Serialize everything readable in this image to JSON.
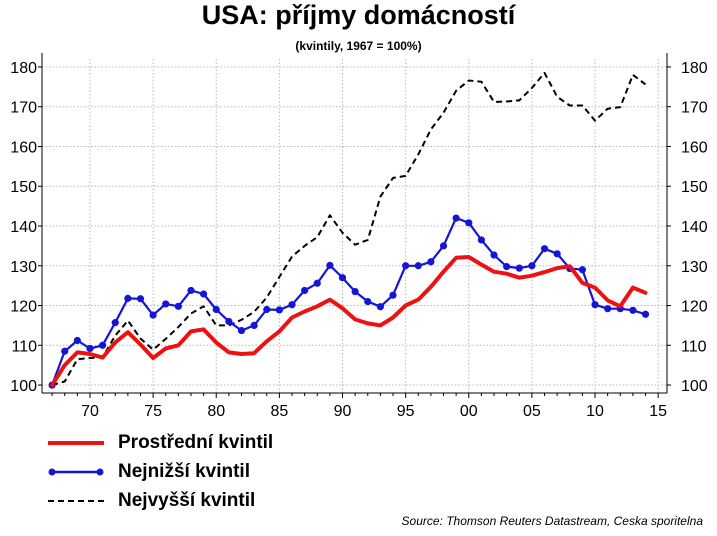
{
  "title": "USA: příjmy domácností",
  "subtitle": "(kvintily, 1967 = 100%)",
  "source": "Source: Thomson Reuters Datastream, Ceska sporitelna",
  "colors": {
    "middle": "#ee1111",
    "lowest": "#1515d6",
    "highest": "#000000",
    "grid": "#b8b8b8"
  },
  "chart_data": {
    "type": "line",
    "title": "USA: příjmy domácností",
    "subtitle": "(kvintily, 1967 = 100%)",
    "xlabel": "",
    "ylabel": "",
    "x_ticks": [
      "70",
      "75",
      "80",
      "85",
      "90",
      "95",
      "00",
      "05",
      "10",
      "15"
    ],
    "x_tick_years": [
      1970,
      1975,
      1980,
      1985,
      1990,
      1995,
      2000,
      2005,
      2010,
      2015
    ],
    "xlim": [
      1966.2,
      2015.7
    ],
    "y_ticks": [
      100,
      110,
      120,
      130,
      140,
      150,
      160,
      170,
      180
    ],
    "ylim": [
      98,
      182
    ],
    "grid": true,
    "legend_position": "bottom-left",
    "secondary_y_axis": true,
    "x": [
      1967,
      1968,
      1969,
      1970,
      1971,
      1972,
      1973,
      1974,
      1975,
      1976,
      1977,
      1978,
      1979,
      1980,
      1981,
      1982,
      1983,
      1984,
      1985,
      1986,
      1987,
      1988,
      1989,
      1990,
      1991,
      1992,
      1993,
      1994,
      1995,
      1996,
      1997,
      1998,
      1999,
      2000,
      2001,
      2002,
      2003,
      2004,
      2005,
      2006,
      2007,
      2008,
      2009,
      2010,
      2011,
      2012,
      2013,
      2014
    ],
    "series": [
      {
        "name": "Prostřední kvintil",
        "style": "solid-thick",
        "values": [
          100,
          105,
          108.2,
          107.8,
          106.9,
          110.7,
          113.3,
          110.2,
          106.8,
          109.2,
          110,
          113.5,
          114,
          110.7,
          108.2,
          107.8,
          108,
          111,
          113.5,
          117,
          118.5,
          119.8,
          121.5,
          119.3,
          116.5,
          115.5,
          115,
          117,
          120,
          121.5,
          124.7,
          128.5,
          132,
          132.2,
          130.3,
          128.5,
          128,
          127,
          127.5,
          128.4,
          129.4,
          129.9,
          125.7,
          124.5,
          121.3,
          119.8,
          124.5,
          123.2
        ]
      },
      {
        "name": "Nejnižší kvintil",
        "style": "solid-markers",
        "values": [
          100,
          108.5,
          111.2,
          109.2,
          110,
          115.7,
          121.8,
          121.7,
          117.6,
          120.4,
          119.8,
          123.8,
          122.9,
          119,
          116,
          113.7,
          115,
          119,
          118.9,
          120.2,
          123.8,
          125.6,
          130.1,
          127,
          123.5,
          121,
          119.7,
          122.6,
          130,
          130,
          131,
          135,
          142,
          140.8,
          136.5,
          132.7,
          129.8,
          129.4,
          130,
          134.3,
          133,
          129.3,
          129,
          120.2,
          119.2,
          119.2,
          118.8,
          117.8
        ]
      },
      {
        "name": "Nejvyšší kvintil",
        "style": "dashed",
        "values": [
          100,
          100.9,
          106.5,
          106.8,
          107,
          112.4,
          116.2,
          111.7,
          108.9,
          111.6,
          114.6,
          118,
          119.8,
          115,
          115,
          116.4,
          118.4,
          122,
          127.2,
          132.3,
          135,
          137.2,
          142.7,
          138.3,
          135.3,
          136.5,
          147.4,
          152.1,
          152.6,
          158,
          164.3,
          168.5,
          174,
          176.6,
          176.3,
          171.2,
          171.3,
          171.6,
          174.7,
          178.5,
          172.5,
          170.3,
          170.3,
          166.5,
          169.5,
          169.9,
          178,
          175.6
        ]
      }
    ]
  }
}
